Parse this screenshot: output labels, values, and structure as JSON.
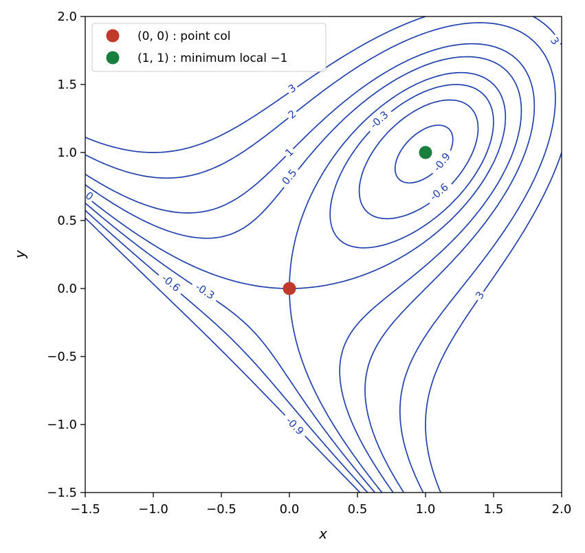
{
  "chart_data": {
    "type": "contour",
    "function": "x^3 + y^3 - 3xy",
    "xlabel": "x",
    "ylabel": "y",
    "xlim": [
      -1.5,
      2.0
    ],
    "ylim": [
      -1.5,
      2.0
    ],
    "xticks": [
      -1.5,
      -1.0,
      -0.5,
      0.0,
      0.5,
      1.0,
      1.5,
      2.0
    ],
    "yticks": [
      -1.5,
      -1.0,
      -0.5,
      0.0,
      0.5,
      1.0,
      1.5,
      2.0
    ],
    "xtick_labels": [
      "−1.5",
      "−1.0",
      "−0.5",
      "0.0",
      "0.5",
      "1.0",
      "1.5",
      "2.0"
    ],
    "ytick_labels": [
      "−1.5",
      "−1.0",
      "−0.5",
      "0.0",
      "0.5",
      "1.0",
      "1.5",
      "2.0"
    ],
    "levels": [
      -0.9,
      -0.6,
      -0.3,
      0,
      0.5,
      1,
      2,
      3
    ],
    "negative_levels_style": "dashed",
    "line_color": "#1f3fad",
    "grid": false,
    "contour_labels": [
      {
        "text": "3",
        "x": 0.02,
        "y": 1.47
      },
      {
        "text": "2",
        "x": 0.02,
        "y": 1.28
      },
      {
        "text": "1",
        "x": 0.0,
        "y": 1.0
      },
      {
        "text": "0.5",
        "x": 0.0,
        "y": 0.82
      },
      {
        "text": "0",
        "x": -1.47,
        "y": 0.68
      },
      {
        "text": "-0.3",
        "x": 0.66,
        "y": 1.24
      },
      {
        "text": "-0.9",
        "x": 1.12,
        "y": 0.93
      },
      {
        "text": "-0.6",
        "x": 1.1,
        "y": 0.71
      },
      {
        "text": "-0.6",
        "x": -0.87,
        "y": 0.04
      },
      {
        "text": "-0.3",
        "x": -0.62,
        "y": -0.02
      },
      {
        "text": "-0.9",
        "x": 0.04,
        "y": -1.01
      },
      {
        "text": "3",
        "x": 1.4,
        "y": -0.05
      },
      {
        "text": "3",
        "x": 1.95,
        "y": 1.82
      }
    ],
    "points": [
      {
        "label": "(0, 0) : point col",
        "x": 0,
        "y": 0,
        "color": "#c0392b"
      },
      {
        "label": "(1, 1) : minimum local −1",
        "x": 1,
        "y": 1,
        "color": "#1a7f3c"
      }
    ],
    "legend_position": "top-left"
  }
}
